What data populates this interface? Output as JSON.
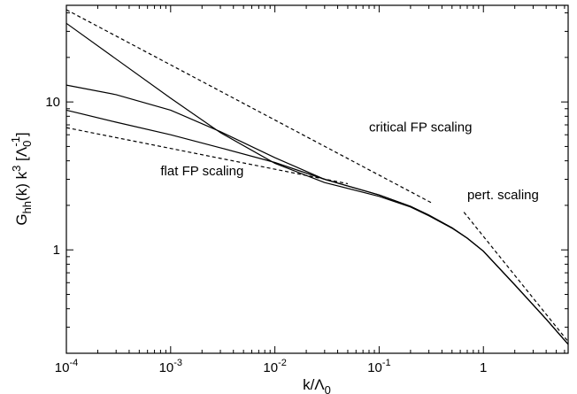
{
  "chart_data": {
    "type": "line",
    "title": "",
    "xlabel_base": "k/Λ",
    "xlabel_sub": "0",
    "ylabel_parts": {
      "g": "G",
      "g_sub": "hh",
      "mid": "(k) k",
      "k_sup": "3",
      "open": " [Λ",
      "lam_sub": "0",
      "lam_sup": "-1",
      "close": "]"
    },
    "x_scale": "log",
    "y_scale": "log",
    "xlim": [
      0.0001,
      6.5
    ],
    "ylim": [
      0.2,
      45
    ],
    "x_ticks": [
      {
        "value": 0.0001,
        "base": "10",
        "exp": "-4"
      },
      {
        "value": 0.001,
        "base": "10",
        "exp": "-3"
      },
      {
        "value": 0.01,
        "base": "10",
        "exp": "-2"
      },
      {
        "value": 0.1,
        "base": "10",
        "exp": "-1"
      },
      {
        "value": 1,
        "base": "1",
        "exp": ""
      }
    ],
    "y_ticks": [
      {
        "value": 1,
        "label": "1"
      },
      {
        "value": 10,
        "label": "10"
      }
    ],
    "series": [
      {
        "style": "solid",
        "x": [
          0.0001,
          0.0003,
          0.001,
          0.003,
          0.01,
          0.03,
          0.1,
          0.2,
          0.3,
          0.5,
          0.7,
          1,
          2,
          4,
          6.5
        ],
        "y": [
          34,
          19.5,
          10.6,
          6.2,
          3.85,
          2.85,
          2.3,
          1.95,
          1.7,
          1.4,
          1.2,
          0.98,
          0.58,
          0.34,
          0.23
        ]
      },
      {
        "style": "solid",
        "x": [
          0.0001,
          0.0003,
          0.001,
          0.003,
          0.01,
          0.03,
          0.1,
          0.2,
          0.3,
          0.5,
          0.7,
          1,
          2,
          4,
          6.5
        ],
        "y": [
          13,
          11.2,
          8.8,
          6.3,
          4.2,
          3.0,
          2.35,
          1.97,
          1.72,
          1.41,
          1.2,
          0.98,
          0.58,
          0.34,
          0.23
        ]
      },
      {
        "style": "solid",
        "x": [
          0.0001,
          0.0003,
          0.001,
          0.003,
          0.01,
          0.03,
          0.1,
          0.2,
          0.3,
          0.5,
          0.7,
          1,
          2,
          4,
          6.5
        ],
        "y": [
          8.8,
          7.3,
          6.0,
          4.9,
          3.9,
          3.0,
          2.35,
          1.97,
          1.72,
          1.41,
          1.2,
          0.98,
          0.58,
          0.34,
          0.23
        ]
      },
      {
        "style": "dashed",
        "x": [
          0.0001,
          0.33
        ],
        "y": [
          42,
          2.05
        ]
      },
      {
        "style": "dashed",
        "x": [
          0.0001,
          0.05
        ],
        "y": [
          6.7,
          2.8
        ]
      },
      {
        "style": "dashed",
        "x": [
          0.65,
          6.5
        ],
        "y": [
          1.8,
          0.24
        ]
      }
    ],
    "annotations": [
      {
        "text": "critical FP scaling",
        "x": 0.08,
        "y": 6.3
      },
      {
        "text": "flat FP scaling",
        "x": 0.0008,
        "y": 3.2
      },
      {
        "text": "pert. scaling",
        "x": 0.7,
        "y": 2.2
      }
    ],
    "grid": false,
    "legend": "none"
  }
}
